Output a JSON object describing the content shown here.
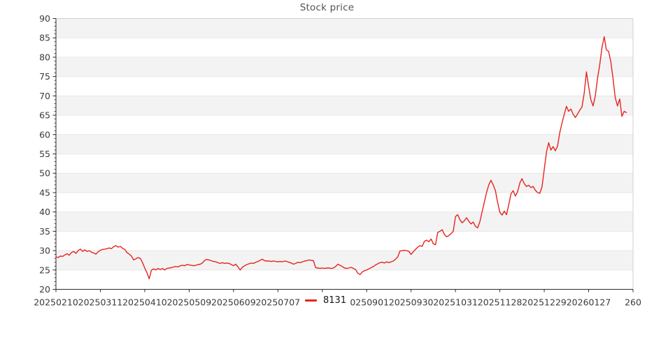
{
  "title": "Stock price",
  "legend": {
    "series_label": "8131"
  },
  "style": {
    "line_color": "#e62420",
    "band_fill": "#f3f3f3",
    "band_edge": "#e3e3e3",
    "spine_dark": "#2b2b2b",
    "spine_light": "#d0d0d0",
    "tick_label_color": "#3a3a3a",
    "title_color": "#545454"
  },
  "chart_data": {
    "type": "line",
    "title": "Stock price",
    "xlabel": "",
    "ylabel": "",
    "ylim": [
      20,
      90
    ],
    "y_ticks": [
      20,
      25,
      30,
      35,
      40,
      45,
      50,
      55,
      60,
      65,
      70,
      75,
      80,
      85,
      90
    ],
    "y_minor_step": 1,
    "grid": "alternating horizontal bands shaded between 25-30, 35-40, 45-50, 55-60, 65-70, 75-80, 85-90",
    "legend_position": "bottom-center, overlapping x tick labels",
    "x_unit": "trading-day index from 20250210, ticks every 20 days",
    "xlim_days": [
      0,
      260
    ],
    "x_tick_days": [
      0,
      20,
      40,
      60,
      80,
      100,
      120,
      140,
      160,
      180,
      200,
      220,
      240,
      260
    ],
    "x_tick_labels": [
      "20250210",
      "20250311",
      "20250410",
      "20250509",
      "20250609",
      "20250707",
      "",
      "20250901",
      "20250930",
      "20251031",
      "20251128",
      "20251229",
      "20260127",
      "260"
    ],
    "series": [
      {
        "name": "8131",
        "color": "#e62420",
        "values": [
          28.4,
          28.2,
          28.6,
          28.5,
          28.9,
          29.2,
          28.8,
          29.5,
          29.8,
          29.3,
          30.0,
          30.4,
          29.8,
          30.2,
          29.8,
          30.0,
          29.6,
          29.4,
          29.1,
          29.7,
          30.1,
          30.3,
          30.4,
          30.5,
          30.7,
          30.5,
          31.0,
          31.3,
          30.9,
          31.1,
          30.6,
          30.3,
          29.5,
          29.1,
          28.6,
          27.6,
          27.9,
          28.2,
          28.0,
          26.9,
          25.5,
          24.3,
          22.7,
          24.9,
          25.3,
          25.0,
          25.4,
          25.1,
          25.4,
          25.0,
          25.4,
          25.5,
          25.6,
          25.8,
          25.9,
          25.8,
          26.1,
          26.2,
          26.1,
          26.4,
          26.3,
          26.2,
          26.1,
          26.2,
          26.4,
          26.5,
          26.8,
          27.5,
          27.7,
          27.6,
          27.4,
          27.2,
          27.1,
          26.9,
          26.7,
          26.9,
          26.7,
          26.8,
          26.7,
          26.4,
          26.1,
          26.5,
          25.8,
          25.0,
          25.7,
          26.1,
          26.4,
          26.6,
          26.8,
          26.7,
          27.0,
          27.2,
          27.5,
          27.8,
          27.4,
          27.3,
          27.3,
          27.2,
          27.3,
          27.2,
          27.1,
          27.2,
          27.1,
          27.3,
          27.2,
          27.0,
          26.8,
          26.5,
          26.7,
          27.0,
          26.9,
          27.1,
          27.3,
          27.4,
          27.6,
          27.5,
          27.4,
          25.6,
          25.5,
          25.4,
          25.5,
          25.4,
          25.5,
          25.5,
          25.4,
          25.5,
          25.9,
          26.5,
          26.2,
          25.9,
          25.5,
          25.4,
          25.5,
          25.7,
          25.4,
          25.1,
          24.2,
          23.8,
          24.5,
          24.8,
          25.0,
          25.3,
          25.6,
          25.9,
          26.3,
          26.6,
          26.9,
          27.0,
          26.8,
          27.1,
          26.9,
          27.1,
          27.3,
          27.8,
          28.4,
          29.9,
          30.0,
          30.1,
          30.0,
          29.8,
          29.0,
          29.7,
          30.3,
          30.9,
          31.3,
          31.1,
          32.4,
          32.7,
          32.3,
          33.0,
          31.8,
          31.5,
          34.7,
          35.0,
          35.4,
          34.2,
          33.6,
          33.9,
          34.4,
          35.0,
          38.8,
          39.3,
          38.0,
          37.2,
          37.7,
          38.5,
          37.6,
          36.9,
          37.4,
          36.3,
          35.9,
          37.5,
          40.0,
          42.5,
          45.0,
          47.0,
          48.2,
          47.0,
          45.5,
          42.5,
          39.9,
          39.2,
          40.2,
          39.3,
          41.8,
          44.7,
          45.5,
          44.1,
          45.2,
          47.5,
          48.6,
          47.3,
          46.6,
          46.9,
          46.3,
          46.6,
          45.6,
          45.0,
          44.8,
          46.5,
          51.0,
          55.5,
          57.9,
          56.0,
          56.9,
          55.8,
          57.0,
          60.5,
          63.0,
          65.2,
          67.3,
          66.0,
          66.6,
          65.3,
          64.4,
          65.3,
          66.3,
          67.1,
          70.7,
          76.2,
          72.5,
          69.0,
          67.4,
          70.0,
          74.5,
          78.0,
          82.5,
          85.3,
          81.9,
          81.5,
          78.8,
          74.5,
          69.5,
          67.4,
          69.2,
          64.7,
          66.0,
          65.7
        ]
      }
    ]
  }
}
